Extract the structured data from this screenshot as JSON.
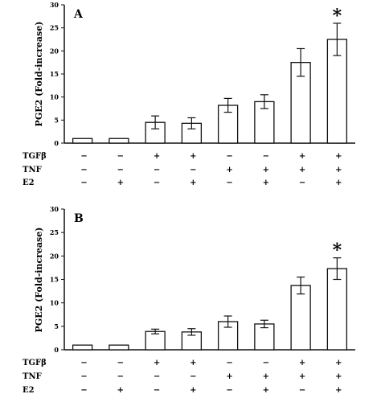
{
  "chart_data": [
    {
      "type": "bar",
      "panel": "A",
      "ylabel": "PGE2 (Fold-increase)",
      "ylim": [
        0,
        30
      ],
      "yticks": [
        0,
        5,
        10,
        15,
        20,
        25,
        30
      ],
      "values": [
        1.0,
        1.0,
        4.5,
        4.3,
        8.2,
        9.0,
        17.5,
        22.5
      ],
      "errors": [
        0,
        0,
        1.4,
        1.2,
        1.5,
        1.5,
        3.0,
        3.5
      ],
      "significant": [
        false,
        false,
        false,
        false,
        false,
        false,
        false,
        true
      ],
      "annotation": "*",
      "conditions": [
        {
          "label": "TGFβ",
          "signs": [
            "−",
            "−",
            "+",
            "+",
            "−",
            "−",
            "+",
            "+"
          ]
        },
        {
          "label": "TNF",
          "signs": [
            "−",
            "−",
            "−",
            "−",
            "+",
            "+",
            "+",
            "+"
          ]
        },
        {
          "label": "E2",
          "signs": [
            "−",
            "+",
            "−",
            "+",
            "−",
            "+",
            "−",
            "+"
          ]
        }
      ]
    },
    {
      "type": "bar",
      "panel": "B",
      "ylabel": "PGE2 (Fold-increase)",
      "ylim": [
        0,
        30
      ],
      "yticks": [
        0,
        5,
        10,
        15,
        20,
        25,
        30
      ],
      "values": [
        1.0,
        1.0,
        3.9,
        3.8,
        6.0,
        5.5,
        13.7,
        17.3
      ],
      "errors": [
        0,
        0,
        0.5,
        0.7,
        1.2,
        0.8,
        1.8,
        2.3
      ],
      "significant": [
        false,
        false,
        false,
        false,
        false,
        false,
        false,
        true
      ],
      "annotation": "*",
      "conditions": [
        {
          "label": "TGFβ",
          "signs": [
            "−",
            "−",
            "+",
            "+",
            "−",
            "−",
            "+",
            "+"
          ]
        },
        {
          "label": "TNF",
          "signs": [
            "−",
            "−",
            "−",
            "−",
            "+",
            "+",
            "+",
            "+"
          ]
        },
        {
          "label": "E2",
          "signs": [
            "−",
            "+",
            "−",
            "+",
            "−",
            "+",
            "−",
            "+"
          ]
        }
      ]
    }
  ]
}
